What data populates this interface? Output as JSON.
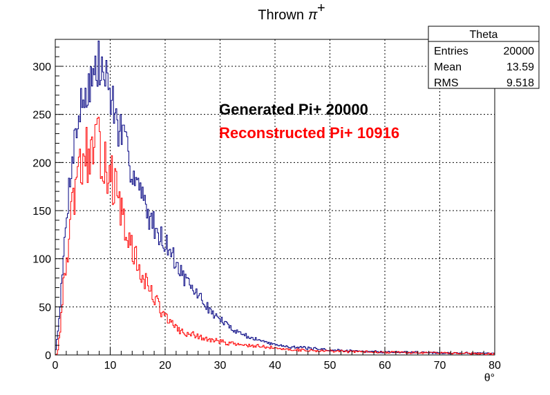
{
  "chart_data": {
    "type": "histogram",
    "title": "Thrown",
    "title_math": "π",
    "title_sup": "+",
    "xlabel": "θ°",
    "ylabel": "",
    "xlim": [
      0,
      80
    ],
    "ylim": [
      0,
      328
    ],
    "x_ticks": [
      0,
      10,
      20,
      30,
      40,
      50,
      60,
      70,
      80
    ],
    "y_ticks": [
      0,
      50,
      100,
      150,
      200,
      250,
      300
    ],
    "grid": true,
    "bin_width": 0.2,
    "stats_box": {
      "name": "Theta",
      "rows": [
        {
          "label": "Entries",
          "value": "20000"
        },
        {
          "label": "Mean",
          "value": "13.59"
        },
        {
          "label": "RMS",
          "value": "9.518"
        }
      ]
    },
    "annotations": [
      {
        "text": "Generated Pi+ 20000",
        "color": "#000000"
      },
      {
        "text": "Reconstructed Pi+ 10916",
        "color": "#ff0000"
      }
    ],
    "series": [
      {
        "color": "#000080",
        "profile": [
          [
            0,
            0
          ],
          [
            0.4,
            20
          ],
          [
            1,
            60
          ],
          [
            2,
            140
          ],
          [
            3,
            205
          ],
          [
            4,
            240
          ],
          [
            5,
            265
          ],
          [
            6,
            280
          ],
          [
            7,
            290
          ],
          [
            8,
            300
          ],
          [
            9,
            290
          ],
          [
            10,
            275
          ],
          [
            11,
            245
          ],
          [
            12,
            230
          ],
          [
            13,
            210
          ],
          [
            14,
            195
          ],
          [
            15,
            180
          ],
          [
            16,
            160
          ],
          [
            17,
            145
          ],
          [
            18,
            135
          ],
          [
            19,
            125
          ],
          [
            20,
            118
          ],
          [
            21,
            108
          ],
          [
            22,
            95
          ],
          [
            23,
            85
          ],
          [
            24,
            75
          ],
          [
            25,
            68
          ],
          [
            26,
            63
          ],
          [
            27,
            55
          ],
          [
            28,
            47
          ],
          [
            29,
            42
          ],
          [
            30,
            37
          ],
          [
            32,
            28
          ],
          [
            34,
            22
          ],
          [
            36,
            17
          ],
          [
            38,
            14
          ],
          [
            40,
            11
          ],
          [
            42,
            9
          ],
          [
            44,
            8
          ],
          [
            46,
            7
          ],
          [
            48,
            6
          ],
          [
            50,
            5
          ],
          [
            55,
            4
          ],
          [
            60,
            3
          ],
          [
            65,
            3
          ],
          [
            70,
            2
          ],
          [
            75,
            2
          ],
          [
            80,
            1
          ]
        ],
        "noise": 0.1,
        "seed": 7
      },
      {
        "color": "#ff0000",
        "profile": [
          [
            0,
            0
          ],
          [
            0.4,
            2
          ],
          [
            0.8,
            20
          ],
          [
            1.5,
            70
          ],
          [
            2,
            95
          ],
          [
            3,
            145
          ],
          [
            4,
            180
          ],
          [
            5,
            200
          ],
          [
            6,
            210
          ],
          [
            7,
            212
          ],
          [
            8,
            215
          ],
          [
            9,
            205
          ],
          [
            10,
            190
          ],
          [
            11,
            170
          ],
          [
            12,
            145
          ],
          [
            13,
            125
          ],
          [
            14,
            108
          ],
          [
            15,
            95
          ],
          [
            16,
            80
          ],
          [
            17,
            70
          ],
          [
            18,
            60
          ],
          [
            19,
            50
          ],
          [
            20,
            40
          ],
          [
            21,
            33
          ],
          [
            22,
            28
          ],
          [
            23,
            24
          ],
          [
            24,
            22
          ],
          [
            25,
            21
          ],
          [
            26,
            19
          ],
          [
            28,
            16
          ],
          [
            30,
            14
          ],
          [
            32,
            12
          ],
          [
            35,
            10
          ],
          [
            40,
            7
          ],
          [
            45,
            5
          ],
          [
            50,
            4
          ],
          [
            60,
            3
          ],
          [
            70,
            2
          ],
          [
            80,
            1
          ]
        ],
        "noise": 0.15,
        "seed": 13
      }
    ]
  }
}
